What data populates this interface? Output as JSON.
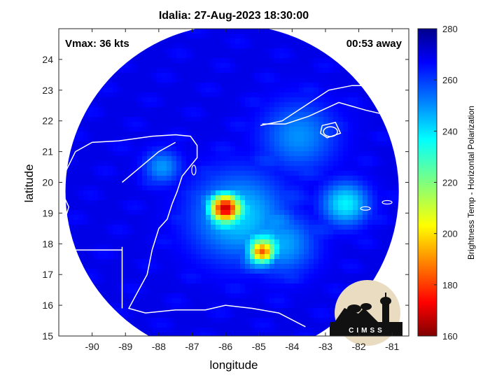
{
  "chart_data": {
    "type": "heatmap",
    "title": "Idalia: 27-Aug-2023 18:30:00",
    "xlabel": "longitude",
    "ylabel": "latitude",
    "xlim": [
      -91,
      -80.5
    ],
    "ylim": [
      15,
      25
    ],
    "xticks": [
      -90,
      -89,
      -88,
      -87,
      -86,
      -85,
      -84,
      -83,
      -82,
      -81
    ],
    "yticks": [
      15,
      16,
      17,
      18,
      19,
      20,
      21,
      22,
      23,
      24
    ],
    "colorbar": {
      "label": "Brightness Temp - Horizontal Polarization",
      "range": [
        160,
        280
      ],
      "ticks": [
        160,
        180,
        200,
        220,
        240,
        260,
        280
      ],
      "colormap": "jet"
    },
    "swath": {
      "center_lon": -85.8,
      "center_lat": 19.7,
      "radius_deg": 5.0,
      "background_value": 268
    },
    "features": [
      {
        "lon": -86.0,
        "lat": 19.15,
        "value": 168,
        "sigma": 0.35
      },
      {
        "lon": -84.9,
        "lat": 17.75,
        "value": 185,
        "sigma": 0.28
      },
      {
        "lon": -82.4,
        "lat": 19.3,
        "value": 236,
        "sigma": 0.5
      },
      {
        "lon": -85.6,
        "lat": 18.9,
        "value": 240,
        "sigma": 1.0
      },
      {
        "lon": -84.3,
        "lat": 18.0,
        "value": 245,
        "sigma": 0.7
      },
      {
        "lon": -83.8,
        "lat": 21.5,
        "value": 248,
        "sigma": 0.8
      },
      {
        "lon": -87.9,
        "lat": 20.5,
        "value": 247,
        "sigma": 0.4
      }
    ],
    "annotations": {
      "vmax": "Vmax: 36 kts",
      "time_away": "00:53 away"
    }
  },
  "logo": {
    "text": "CIMSS"
  }
}
